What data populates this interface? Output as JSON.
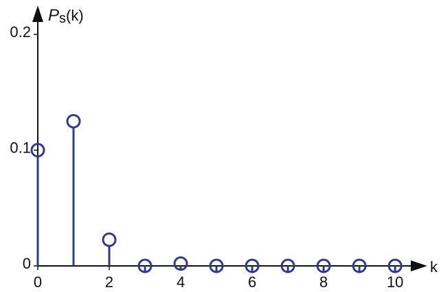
{
  "chart_data": {
    "type": "stem",
    "ylabel": [
      "P",
      "s",
      "(k)"
    ],
    "xlabel": "k",
    "x": [
      0,
      1,
      2,
      3,
      4,
      5,
      6,
      7,
      8,
      9,
      10
    ],
    "values": [
      0.1,
      0.125,
      0.0226,
      0,
      0.002,
      0,
      0,
      0,
      0,
      0,
      0
    ],
    "color": "#2e3a8c",
    "xlim": [
      0,
      10.9
    ],
    "ylim": [
      0,
      0.225
    ],
    "xticks": [
      0,
      2,
      4,
      6,
      8,
      10
    ],
    "yticks": [
      0,
      0.1,
      0.2
    ]
  }
}
